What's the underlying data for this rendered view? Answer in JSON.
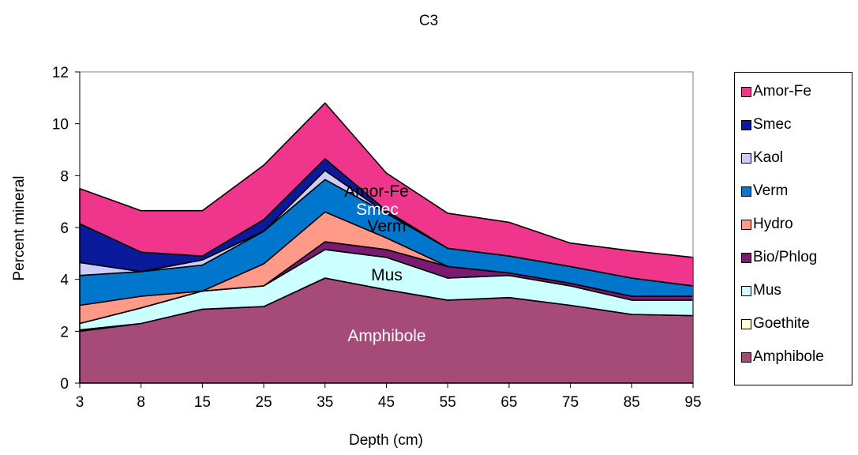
{
  "chart_data": {
    "type": "area",
    "stacked": true,
    "title": "C3",
    "xlabel": "Depth (cm)",
    "ylabel": "Percent mineral",
    "ylim": [
      0,
      12
    ],
    "yticks": [
      0,
      2,
      4,
      6,
      8,
      10,
      12
    ],
    "categories": [
      "3",
      "8",
      "15",
      "25",
      "35",
      "45",
      "55",
      "65",
      "75",
      "85",
      "95"
    ],
    "legend_position": "right",
    "series": [
      {
        "name": "Amphibole",
        "color": "#A64A78",
        "values": [
          2.0,
          2.3,
          2.85,
          2.95,
          4.05,
          3.6,
          3.2,
          3.3,
          3.0,
          2.65,
          2.6
        ]
      },
      {
        "name": "Goethite",
        "color": "#FFFFCC",
        "values": [
          0.05,
          0.0,
          0.0,
          0.0,
          0.0,
          0.0,
          0.0,
          0.0,
          0.0,
          0.0,
          0.0
        ]
      },
      {
        "name": "Mus",
        "color": "#CCFFFF",
        "values": [
          0.25,
          0.6,
          0.7,
          0.8,
          1.1,
          1.25,
          0.85,
          0.85,
          0.75,
          0.55,
          0.6
        ]
      },
      {
        "name": "Bio/Phlog",
        "color": "#7A1A72",
        "values": [
          0.0,
          0.0,
          0.0,
          0.0,
          0.3,
          0.3,
          0.45,
          0.1,
          0.1,
          0.15,
          0.15
        ]
      },
      {
        "name": "Hydro",
        "color": "#FF9988",
        "values": [
          0.7,
          0.45,
          0.0,
          0.85,
          1.15,
          0.45,
          0.0,
          0.0,
          0.0,
          0.0,
          0.0
        ]
      },
      {
        "name": "Verm",
        "color": "#0077CC",
        "values": [
          1.15,
          0.95,
          1.0,
          1.25,
          1.25,
          0.95,
          0.7,
          0.65,
          0.65,
          0.7,
          0.4
        ]
      },
      {
        "name": "Kaol",
        "color": "#CCCCFF",
        "values": [
          0.5,
          0.0,
          0.2,
          0.0,
          0.35,
          0.0,
          0.0,
          0.0,
          0.0,
          0.0,
          0.0
        ]
      },
      {
        "name": "Smec",
        "color": "#0A1A9A",
        "values": [
          1.5,
          0.75,
          0.15,
          0.45,
          0.45,
          0.1,
          0.0,
          0.0,
          0.0,
          0.0,
          0.0
        ]
      },
      {
        "name": "Amor-Fe",
        "color": "#F0358C",
        "values": [
          1.35,
          1.6,
          1.75,
          2.1,
          2.15,
          1.45,
          1.35,
          1.3,
          0.9,
          1.05,
          1.1
        ]
      }
    ],
    "annotations": [
      "Amor-Fe",
      "Smec",
      "Verm",
      "Mus",
      "Amphibole"
    ]
  }
}
